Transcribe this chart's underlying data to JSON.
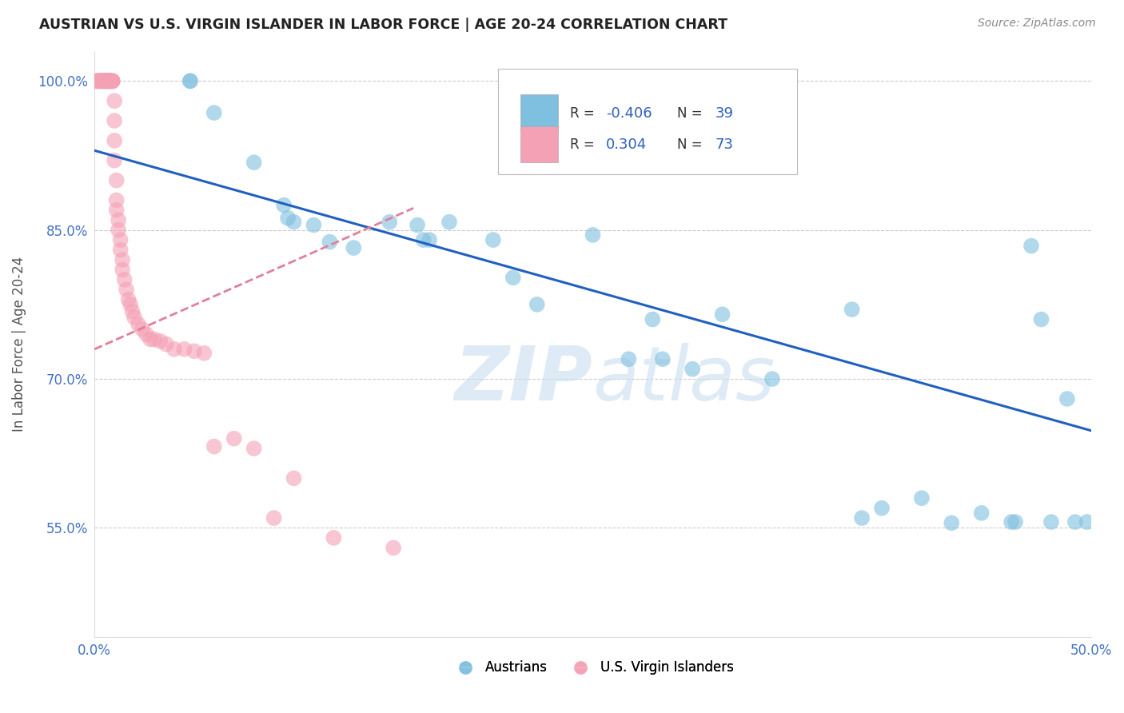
{
  "title": "AUSTRIAN VS U.S. VIRGIN ISLANDER IN LABOR FORCE | AGE 20-24 CORRELATION CHART",
  "source": "Source: ZipAtlas.com",
  "ylabel": "In Labor Force | Age 20-24",
  "xlim": [
    0.0,
    0.5
  ],
  "ylim": [
    0.44,
    1.03
  ],
  "xticks": [
    0.0,
    0.1,
    0.2,
    0.3,
    0.4,
    0.5
  ],
  "xticklabels": [
    "0.0%",
    "",
    "",
    "",
    "",
    "50.0%"
  ],
  "yticks": [
    0.55,
    0.7,
    0.85,
    1.0
  ],
  "yticklabels": [
    "55.0%",
    "70.0%",
    "85.0%",
    "100.0%"
  ],
  "grid_color": "#cccccc",
  "background_color": "#ffffff",
  "blue_color": "#7fbfdf",
  "pink_color": "#f4a0b5",
  "blue_line_color": "#2060c0",
  "pink_line_color": "#e08098",
  "watermark": "ZIPatlas",
  "blue_scatter_x": [
    0.048,
    0.048,
    0.06,
    0.08,
    0.095,
    0.097,
    0.1,
    0.11,
    0.118,
    0.13,
    0.148,
    0.162,
    0.165,
    0.168,
    0.178,
    0.2,
    0.21,
    0.222,
    0.25,
    0.268,
    0.28,
    0.285,
    0.3,
    0.315,
    0.34,
    0.38,
    0.385,
    0.395,
    0.415,
    0.43,
    0.445,
    0.46,
    0.462,
    0.47,
    0.475,
    0.48,
    0.488,
    0.492,
    0.498
  ],
  "blue_scatter_y": [
    1.0,
    1.0,
    0.968,
    0.918,
    0.875,
    0.862,
    0.858,
    0.855,
    0.838,
    0.832,
    0.858,
    0.855,
    0.84,
    0.84,
    0.858,
    0.84,
    0.802,
    0.775,
    0.845,
    0.72,
    0.76,
    0.72,
    0.71,
    0.765,
    0.7,
    0.77,
    0.56,
    0.57,
    0.58,
    0.555,
    0.565,
    0.556,
    0.556,
    0.834,
    0.76,
    0.556,
    0.68,
    0.556,
    0.556
  ],
  "pink_scatter_x": [
    0.001,
    0.001,
    0.002,
    0.002,
    0.002,
    0.003,
    0.003,
    0.003,
    0.003,
    0.004,
    0.004,
    0.004,
    0.005,
    0.005,
    0.005,
    0.005,
    0.005,
    0.005,
    0.006,
    0.006,
    0.006,
    0.006,
    0.007,
    0.007,
    0.007,
    0.007,
    0.007,
    0.008,
    0.008,
    0.008,
    0.008,
    0.008,
    0.009,
    0.009,
    0.009,
    0.009,
    0.01,
    0.01,
    0.01,
    0.01,
    0.011,
    0.011,
    0.011,
    0.012,
    0.012,
    0.013,
    0.013,
    0.014,
    0.014,
    0.015,
    0.016,
    0.017,
    0.018,
    0.019,
    0.02,
    0.022,
    0.024,
    0.026,
    0.028,
    0.03,
    0.033,
    0.036,
    0.04,
    0.045,
    0.05,
    0.055,
    0.06,
    0.07,
    0.08,
    0.09,
    0.1,
    0.12,
    0.15
  ],
  "pink_scatter_y": [
    1.0,
    1.0,
    1.0,
    1.0,
    1.0,
    1.0,
    1.0,
    1.0,
    1.0,
    1.0,
    1.0,
    1.0,
    1.0,
    1.0,
    1.0,
    1.0,
    1.0,
    1.0,
    1.0,
    1.0,
    1.0,
    1.0,
    1.0,
    1.0,
    1.0,
    1.0,
    1.0,
    1.0,
    1.0,
    1.0,
    1.0,
    1.0,
    1.0,
    1.0,
    1.0,
    1.0,
    0.98,
    0.96,
    0.94,
    0.92,
    0.9,
    0.88,
    0.87,
    0.86,
    0.85,
    0.84,
    0.83,
    0.82,
    0.81,
    0.8,
    0.79,
    0.78,
    0.775,
    0.768,
    0.762,
    0.755,
    0.75,
    0.745,
    0.74,
    0.74,
    0.738,
    0.735,
    0.73,
    0.73,
    0.728,
    0.726,
    0.632,
    0.64,
    0.63,
    0.56,
    0.6,
    0.54,
    0.53
  ],
  "blue_trendline_x": [
    0.0,
    0.5
  ],
  "blue_trendline_y": [
    0.93,
    0.648
  ],
  "pink_trendline_x": [
    0.0,
    0.16
  ],
  "pink_trendline_y": [
    0.73,
    0.872
  ],
  "footer_labels": [
    "Austrians",
    "U.S. Virgin Islanders"
  ]
}
